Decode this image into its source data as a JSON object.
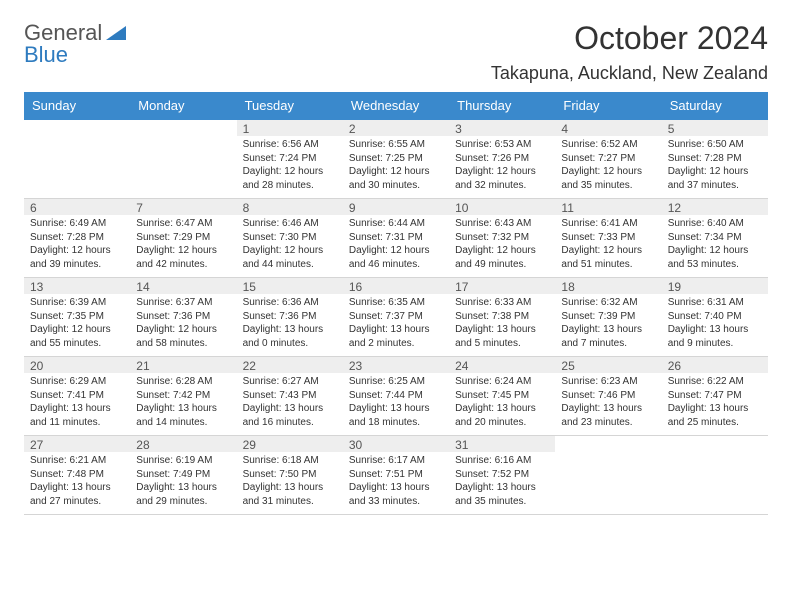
{
  "logo": {
    "text1": "General",
    "text2": "Blue",
    "tri_color": "#2e7bbf"
  },
  "title": "October 2024",
  "location": "Takapuna, Auckland, New Zealand",
  "colors": {
    "header_bg": "#3a89cc",
    "header_text": "#ffffff",
    "daynum_bg": "#eeeeee",
    "border": "#d5d5d5"
  },
  "weekdays": [
    "Sunday",
    "Monday",
    "Tuesday",
    "Wednesday",
    "Thursday",
    "Friday",
    "Saturday"
  ],
  "weeks": [
    [
      {
        "blank": true
      },
      {
        "blank": true
      },
      {
        "num": "1",
        "sunrise": "Sunrise: 6:56 AM",
        "sunset": "Sunset: 7:24 PM",
        "daylight1": "Daylight: 12 hours",
        "daylight2": "and 28 minutes."
      },
      {
        "num": "2",
        "sunrise": "Sunrise: 6:55 AM",
        "sunset": "Sunset: 7:25 PM",
        "daylight1": "Daylight: 12 hours",
        "daylight2": "and 30 minutes."
      },
      {
        "num": "3",
        "sunrise": "Sunrise: 6:53 AM",
        "sunset": "Sunset: 7:26 PM",
        "daylight1": "Daylight: 12 hours",
        "daylight2": "and 32 minutes."
      },
      {
        "num": "4",
        "sunrise": "Sunrise: 6:52 AM",
        "sunset": "Sunset: 7:27 PM",
        "daylight1": "Daylight: 12 hours",
        "daylight2": "and 35 minutes."
      },
      {
        "num": "5",
        "sunrise": "Sunrise: 6:50 AM",
        "sunset": "Sunset: 7:28 PM",
        "daylight1": "Daylight: 12 hours",
        "daylight2": "and 37 minutes."
      }
    ],
    [
      {
        "num": "6",
        "sunrise": "Sunrise: 6:49 AM",
        "sunset": "Sunset: 7:28 PM",
        "daylight1": "Daylight: 12 hours",
        "daylight2": "and 39 minutes."
      },
      {
        "num": "7",
        "sunrise": "Sunrise: 6:47 AM",
        "sunset": "Sunset: 7:29 PM",
        "daylight1": "Daylight: 12 hours",
        "daylight2": "and 42 minutes."
      },
      {
        "num": "8",
        "sunrise": "Sunrise: 6:46 AM",
        "sunset": "Sunset: 7:30 PM",
        "daylight1": "Daylight: 12 hours",
        "daylight2": "and 44 minutes."
      },
      {
        "num": "9",
        "sunrise": "Sunrise: 6:44 AM",
        "sunset": "Sunset: 7:31 PM",
        "daylight1": "Daylight: 12 hours",
        "daylight2": "and 46 minutes."
      },
      {
        "num": "10",
        "sunrise": "Sunrise: 6:43 AM",
        "sunset": "Sunset: 7:32 PM",
        "daylight1": "Daylight: 12 hours",
        "daylight2": "and 49 minutes."
      },
      {
        "num": "11",
        "sunrise": "Sunrise: 6:41 AM",
        "sunset": "Sunset: 7:33 PM",
        "daylight1": "Daylight: 12 hours",
        "daylight2": "and 51 minutes."
      },
      {
        "num": "12",
        "sunrise": "Sunrise: 6:40 AM",
        "sunset": "Sunset: 7:34 PM",
        "daylight1": "Daylight: 12 hours",
        "daylight2": "and 53 minutes."
      }
    ],
    [
      {
        "num": "13",
        "sunrise": "Sunrise: 6:39 AM",
        "sunset": "Sunset: 7:35 PM",
        "daylight1": "Daylight: 12 hours",
        "daylight2": "and 55 minutes."
      },
      {
        "num": "14",
        "sunrise": "Sunrise: 6:37 AM",
        "sunset": "Sunset: 7:36 PM",
        "daylight1": "Daylight: 12 hours",
        "daylight2": "and 58 minutes."
      },
      {
        "num": "15",
        "sunrise": "Sunrise: 6:36 AM",
        "sunset": "Sunset: 7:36 PM",
        "daylight1": "Daylight: 13 hours",
        "daylight2": "and 0 minutes."
      },
      {
        "num": "16",
        "sunrise": "Sunrise: 6:35 AM",
        "sunset": "Sunset: 7:37 PM",
        "daylight1": "Daylight: 13 hours",
        "daylight2": "and 2 minutes."
      },
      {
        "num": "17",
        "sunrise": "Sunrise: 6:33 AM",
        "sunset": "Sunset: 7:38 PM",
        "daylight1": "Daylight: 13 hours",
        "daylight2": "and 5 minutes."
      },
      {
        "num": "18",
        "sunrise": "Sunrise: 6:32 AM",
        "sunset": "Sunset: 7:39 PM",
        "daylight1": "Daylight: 13 hours",
        "daylight2": "and 7 minutes."
      },
      {
        "num": "19",
        "sunrise": "Sunrise: 6:31 AM",
        "sunset": "Sunset: 7:40 PM",
        "daylight1": "Daylight: 13 hours",
        "daylight2": "and 9 minutes."
      }
    ],
    [
      {
        "num": "20",
        "sunrise": "Sunrise: 6:29 AM",
        "sunset": "Sunset: 7:41 PM",
        "daylight1": "Daylight: 13 hours",
        "daylight2": "and 11 minutes."
      },
      {
        "num": "21",
        "sunrise": "Sunrise: 6:28 AM",
        "sunset": "Sunset: 7:42 PM",
        "daylight1": "Daylight: 13 hours",
        "daylight2": "and 14 minutes."
      },
      {
        "num": "22",
        "sunrise": "Sunrise: 6:27 AM",
        "sunset": "Sunset: 7:43 PM",
        "daylight1": "Daylight: 13 hours",
        "daylight2": "and 16 minutes."
      },
      {
        "num": "23",
        "sunrise": "Sunrise: 6:25 AM",
        "sunset": "Sunset: 7:44 PM",
        "daylight1": "Daylight: 13 hours",
        "daylight2": "and 18 minutes."
      },
      {
        "num": "24",
        "sunrise": "Sunrise: 6:24 AM",
        "sunset": "Sunset: 7:45 PM",
        "daylight1": "Daylight: 13 hours",
        "daylight2": "and 20 minutes."
      },
      {
        "num": "25",
        "sunrise": "Sunrise: 6:23 AM",
        "sunset": "Sunset: 7:46 PM",
        "daylight1": "Daylight: 13 hours",
        "daylight2": "and 23 minutes."
      },
      {
        "num": "26",
        "sunrise": "Sunrise: 6:22 AM",
        "sunset": "Sunset: 7:47 PM",
        "daylight1": "Daylight: 13 hours",
        "daylight2": "and 25 minutes."
      }
    ],
    [
      {
        "num": "27",
        "sunrise": "Sunrise: 6:21 AM",
        "sunset": "Sunset: 7:48 PM",
        "daylight1": "Daylight: 13 hours",
        "daylight2": "and 27 minutes."
      },
      {
        "num": "28",
        "sunrise": "Sunrise: 6:19 AM",
        "sunset": "Sunset: 7:49 PM",
        "daylight1": "Daylight: 13 hours",
        "daylight2": "and 29 minutes."
      },
      {
        "num": "29",
        "sunrise": "Sunrise: 6:18 AM",
        "sunset": "Sunset: 7:50 PM",
        "daylight1": "Daylight: 13 hours",
        "daylight2": "and 31 minutes."
      },
      {
        "num": "30",
        "sunrise": "Sunrise: 6:17 AM",
        "sunset": "Sunset: 7:51 PM",
        "daylight1": "Daylight: 13 hours",
        "daylight2": "and 33 minutes."
      },
      {
        "num": "31",
        "sunrise": "Sunrise: 6:16 AM",
        "sunset": "Sunset: 7:52 PM",
        "daylight1": "Daylight: 13 hours",
        "daylight2": "and 35 minutes."
      },
      {
        "blank": true
      },
      {
        "blank": true
      }
    ]
  ]
}
